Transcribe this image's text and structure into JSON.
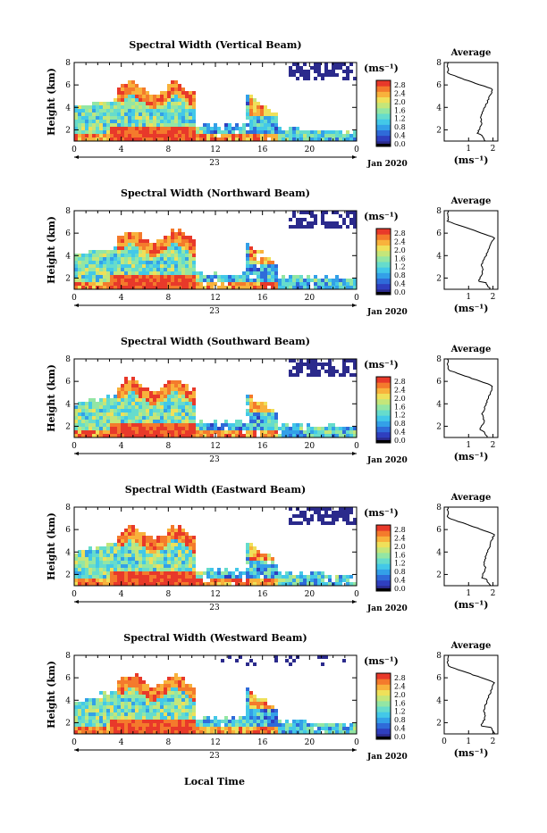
{
  "figure": {
    "xlabel_bottom": "Local Time",
    "colors": {
      "colormap": [
        "#2b2a8c",
        "#2f3fbf",
        "#2f6bd9",
        "#33a0e8",
        "#43c8e8",
        "#66dccc",
        "#93e6a4",
        "#c4e67a",
        "#efe05a",
        "#f8b23c",
        "#f47a2c",
        "#e8392a"
      ],
      "zero_color": "#000000"
    }
  },
  "panels": [
    {
      "title": "Spectral Width (Vertical Beam)",
      "cap_band_top": 72,
      "cap_band_bot": 98,
      "profile_surface_x": 1.5,
      "profile_peak_x": 2.0,
      "profile_dip_x": 1.45
    },
    {
      "title": "Spectral Width (Northward Beam)",
      "cap_band_top": 72,
      "cap_band_bot": 100,
      "profile_surface_x": 1.7,
      "profile_peak_x": 2.05,
      "profile_dip_x": 1.5
    },
    {
      "title": "Spectral Width (Southward Beam)",
      "cap_band_top": 72,
      "cap_band_bot": 84,
      "profile_surface_x": 1.6,
      "profile_peak_x": 2.0,
      "profile_dip_x": 1.55
    },
    {
      "title": "Spectral Width (Eastward Beam)",
      "cap_band_top": 72,
      "cap_band_bot": 100,
      "profile_surface_x": 1.7,
      "profile_peak_x": 2.05,
      "profile_dip_x": 1.6
    },
    {
      "title": "Spectral Width (Westward Beam)",
      "cap_band_top": 72,
      "cap_band_bot": 80,
      "profile_surface_x": 1.9,
      "profile_peak_x": 2.05,
      "profile_dip_x": 1.6
    }
  ],
  "chart_data": [
    {
      "type": "heatmap",
      "title": "Spectral Width (Vertical Beam)",
      "ylabel": "Height (km)",
      "ylim": [
        1,
        8
      ],
      "yticks": [
        "2",
        "4",
        "6",
        "8"
      ],
      "xlim": [
        0,
        24
      ],
      "xticks": [
        "0",
        "4",
        "8",
        "12",
        "16",
        "20",
        "0"
      ],
      "date_center": "23",
      "date_right": "Jan 2020",
      "colorbar": {
        "unit": "(ms⁻¹)",
        "ticks": [
          "2.8",
          "2.4",
          "2.0",
          "1.6",
          "1.2",
          "0.8",
          "0.4",
          "0.0"
        ],
        "range": [
          0,
          2.8
        ]
      }
    },
    {
      "type": "line",
      "title": "Average",
      "ylabel": "",
      "xlabel": "(ms⁻¹)",
      "yticks": [
        "2",
        "4",
        "6",
        "8"
      ],
      "xticks": [
        "1",
        "2"
      ],
      "ylim": [
        1,
        8
      ],
      "xlim": [
        0,
        2.2
      ]
    },
    {
      "type": "heatmap",
      "title": "Spectral Width (Northward Beam)",
      "ylabel": "Height (km)",
      "ylim": [
        1,
        8
      ],
      "yticks": [
        "2",
        "4",
        "6",
        "8"
      ],
      "xlim": [
        0,
        24
      ],
      "xticks": [
        "0",
        "4",
        "8",
        "12",
        "16",
        "20",
        "0"
      ],
      "date_center": "23",
      "date_right": "Jan 2020",
      "colorbar": {
        "unit": "(ms⁻¹)",
        "ticks": [
          "2.8",
          "2.4",
          "2.0",
          "1.6",
          "1.2",
          "0.8",
          "0.4",
          "0.0"
        ],
        "range": [
          0,
          2.8
        ]
      }
    },
    {
      "type": "line",
      "title": "Average",
      "xlabel": "(ms⁻¹)",
      "yticks": [
        "2",
        "4",
        "6",
        "8"
      ],
      "xticks": [
        "1",
        "2"
      ],
      "ylim": [
        1,
        8
      ],
      "xlim": [
        0,
        2.2
      ]
    },
    {
      "type": "heatmap",
      "title": "Spectral Width (Southward Beam)",
      "ylabel": "Height (km)",
      "ylim": [
        1,
        8
      ],
      "yticks": [
        "2",
        "4",
        "6",
        "8"
      ],
      "xlim": [
        0,
        24
      ],
      "xticks": [
        "0",
        "4",
        "8",
        "12",
        "16",
        "20",
        "0"
      ],
      "date_center": "23",
      "date_right": "Jan 2020",
      "colorbar": {
        "unit": "(ms⁻¹)",
        "ticks": [
          "2.8",
          "2.4",
          "2.0",
          "1.6",
          "1.2",
          "0.8",
          "0.4",
          "0.0"
        ],
        "range": [
          0,
          2.8
        ]
      }
    },
    {
      "type": "line",
      "title": "Average",
      "xlabel": "(ms⁻¹)",
      "yticks": [
        "2",
        "4",
        "6",
        "8"
      ],
      "xticks": [
        "1",
        "2"
      ],
      "ylim": [
        1,
        8
      ],
      "xlim": [
        0,
        2.2
      ]
    },
    {
      "type": "heatmap",
      "title": "Spectral Width (Eastward Beam)",
      "ylabel": "Height (km)",
      "ylim": [
        1,
        8
      ],
      "yticks": [
        "2",
        "4",
        "6",
        "8"
      ],
      "xlim": [
        0,
        24
      ],
      "xticks": [
        "0",
        "4",
        "8",
        "12",
        "16",
        "20",
        "0"
      ],
      "date_center": "23",
      "date_right": "Jan 2020",
      "colorbar": {
        "unit": "(ms⁻¹)",
        "ticks": [
          "2.8",
          "2.4",
          "2.0",
          "1.6",
          "1.2",
          "0.8",
          "0.4",
          "0.0"
        ],
        "range": [
          0,
          2.8
        ]
      }
    },
    {
      "type": "line",
      "title": "Average",
      "xlabel": "(ms⁻¹)",
      "yticks": [
        "2",
        "4",
        "6",
        "8"
      ],
      "xticks": [
        "1",
        "2"
      ],
      "ylim": [
        1,
        8
      ],
      "xlim": [
        0,
        2.2
      ]
    },
    {
      "type": "heatmap",
      "title": "Spectral Width (Westward Beam)",
      "ylabel": "Height (km)",
      "ylim": [
        1,
        8
      ],
      "yticks": [
        "2",
        "4",
        "6",
        "8"
      ],
      "xlim": [
        0,
        24
      ],
      "xticks": [
        "0",
        "4",
        "8",
        "12",
        "16",
        "20",
        "0"
      ],
      "date_center": "23",
      "date_right": "Jan 2020",
      "colorbar": {
        "unit": "(ms⁻¹)",
        "ticks": [
          "2.8",
          "2.4",
          "2.0",
          "1.6",
          "1.2",
          "0.8",
          "0.4",
          "0.0"
        ],
        "range": [
          0,
          2.8
        ]
      }
    },
    {
      "type": "line",
      "title": "Average",
      "xlabel": "(ms⁻¹)",
      "yticks": [
        "2",
        "4",
        "6",
        "8"
      ],
      "xticks": [
        "0",
        "1",
        "2"
      ],
      "ylim": [
        1,
        8
      ],
      "xlim": [
        0,
        2.2
      ]
    }
  ]
}
